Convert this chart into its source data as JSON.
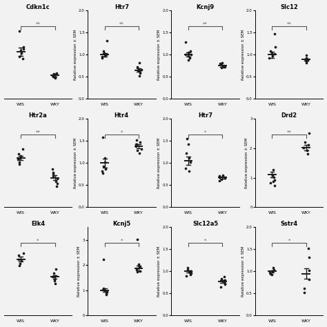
{
  "plots": [
    {
      "title": "Cdkn1c",
      "ylabel": "",
      "has_yaxis": false,
      "wis_points": [
        1.35,
        1.05,
        0.92,
        1.08,
        1.02,
        0.98,
        0.88
      ],
      "wky_points": [
        0.55,
        0.62,
        0.58,
        0.6,
        0.63,
        0.57,
        0.59
      ],
      "wis_mean": 1.0,
      "wis_sem": 0.07,
      "wky_mean": 0.6,
      "wky_sem": 0.025,
      "sig": "**",
      "ylim": [
        0.2,
        1.7
      ],
      "yticks": null,
      "row": 0,
      "col": 0
    },
    {
      "title": "Htr7",
      "ylabel": "Relative expression ± SEM",
      "has_yaxis": true,
      "wis_points": [
        1.32,
        1.08,
        1.01,
        0.96,
        0.93,
        1.0,
        0.97,
        1.03
      ],
      "wky_points": [
        0.72,
        0.82,
        0.65,
        0.58,
        0.68,
        0.63,
        0.52,
        0.66
      ],
      "wis_mean": 1.0,
      "wis_sem": 0.04,
      "wky_mean": 0.65,
      "wky_sem": 0.04,
      "sig": "**",
      "ylim": [
        0.0,
        2.0
      ],
      "yticks": [
        0.0,
        0.5,
        1.0,
        1.5,
        2.0
      ],
      "row": 0,
      "col": 1
    },
    {
      "title": "Kcnj9",
      "ylabel": "Relative expression ± SEM",
      "has_yaxis": true,
      "wis_points": [
        1.28,
        1.08,
        0.97,
        0.92,
        1.0,
        1.05,
        0.88,
        1.01
      ],
      "wky_points": [
        0.78,
        0.82,
        0.72,
        0.74,
        0.7,
        0.8,
        0.77,
        0.72
      ],
      "wis_mean": 1.0,
      "wis_sem": 0.045,
      "wky_mean": 0.75,
      "wky_sem": 0.025,
      "sig": "**",
      "ylim": [
        0.0,
        2.0
      ],
      "yticks": [
        0.0,
        0.5,
        1.0,
        1.5,
        2.0
      ],
      "row": 0,
      "col": 2
    },
    {
      "title": "Slc12",
      "ylabel": "Relative expression ± SEM",
      "has_yaxis": true,
      "wis_points": [
        1.48,
        1.18,
        1.02,
        0.97,
        1.08,
        0.92,
        1.03
      ],
      "wky_points": [
        0.88,
        0.98,
        0.93,
        0.85,
        0.82,
        0.9,
        0.87
      ],
      "wis_mean": 1.0,
      "wis_sem": 0.07,
      "wky_mean": 0.89,
      "wky_sem": 0.025,
      "sig": "**",
      "ylim": [
        0.0,
        2.0
      ],
      "yticks": [
        0.0,
        0.5,
        1.0,
        1.5,
        2.0
      ],
      "row": 0,
      "col": 3
    },
    {
      "title": "Htr2a",
      "ylabel": "",
      "has_yaxis": false,
      "wis_points": [
        1.18,
        1.08,
        0.97,
        1.0,
        0.92,
        1.05,
        0.87,
        1.0
      ],
      "wky_points": [
        0.78,
        0.68,
        0.58,
        0.63,
        0.52,
        0.48,
        0.42,
        0.7
      ],
      "wis_mean": 1.0,
      "wis_sem": 0.04,
      "wky_mean": 0.6,
      "wky_sem": 0.05,
      "sig": "**",
      "ylim": [
        0.0,
        1.8
      ],
      "yticks": null,
      "row": 1,
      "col": 0
    },
    {
      "title": "Htr4",
      "ylabel": "Relative expression ± SEM",
      "has_yaxis": true,
      "wis_points": [
        1.58,
        1.12,
        1.02,
        0.82,
        0.92,
        0.77,
        0.87
      ],
      "wky_points": [
        1.52,
        1.42,
        1.32,
        1.22,
        1.38,
        1.48,
        1.42,
        1.28
      ],
      "wis_mean": 1.0,
      "wis_sem": 0.1,
      "wky_mean": 1.38,
      "wky_sem": 0.04,
      "sig": "*",
      "ylim": [
        0.0,
        2.0
      ],
      "yticks": [
        0.0,
        0.5,
        1.0,
        1.5,
        2.0
      ],
      "row": 1,
      "col": 1
    },
    {
      "title": "Htr7",
      "ylabel": "Relative expression ± SEM",
      "has_yaxis": true,
      "wis_points": [
        1.55,
        1.42,
        1.22,
        0.88,
        1.02,
        1.12,
        0.82
      ],
      "wky_points": [
        0.73,
        0.68,
        0.63,
        0.66,
        0.7,
        0.68,
        0.66,
        0.6
      ],
      "wis_mean": 1.05,
      "wis_sem": 0.1,
      "wky_mean": 0.67,
      "wky_sem": 0.02,
      "sig": "*",
      "ylim": [
        0.0,
        2.0
      ],
      "yticks": [
        0.0,
        0.5,
        1.0,
        1.5,
        2.0
      ],
      "row": 1,
      "col": 2
    },
    {
      "title": "Drd2",
      "ylabel": "Relative expression ± SEM",
      "has_yaxis": true,
      "wis_points": [
        1.28,
        1.08,
        0.92,
        0.82,
        0.72,
        1.02,
        0.87
      ],
      "wky_points": [
        2.52,
        2.22,
        2.02,
        1.92,
        2.12,
        1.82,
        2.02
      ],
      "wis_mean": 1.1,
      "wis_sem": 0.09,
      "wky_mean": 2.02,
      "wky_sem": 0.09,
      "sig": "**",
      "ylim": [
        0.0,
        3.0
      ],
      "yticks": [
        0,
        1,
        2,
        3
      ],
      "row": 1,
      "col": 3
    },
    {
      "title": "Elk4",
      "ylabel": "",
      "has_yaxis": false,
      "wis_points": [
        1.38,
        1.28,
        1.22,
        1.35,
        1.25,
        1.3
      ],
      "wky_points": [
        1.18,
        1.08,
        1.0,
        1.13,
        1.03,
        1.08,
        1.05
      ],
      "wis_mean": 1.3,
      "wis_sem": 0.03,
      "wky_mean": 1.08,
      "wky_sem": 0.025,
      "sig": "*",
      "ylim": [
        0.6,
        1.7
      ],
      "yticks": null,
      "row": 2,
      "col": 0
    },
    {
      "title": "Kcnj5",
      "ylabel": "Relative expression ± SEM",
      "has_yaxis": true,
      "wis_points": [
        1.08,
        0.98,
        0.88,
        0.83,
        0.93,
        1.03,
        2.22
      ],
      "wky_points": [
        2.02,
        1.92,
        1.82,
        1.87,
        1.97,
        1.72,
        1.77,
        3.02
      ],
      "wis_mean": 1.0,
      "wis_sem": 0.07,
      "wky_mean": 1.87,
      "wky_sem": 0.1,
      "sig": "*",
      "ylim": [
        0.0,
        3.5
      ],
      "yticks": [
        0,
        1,
        2,
        3
      ],
      "row": 2,
      "col": 1
    },
    {
      "title": "Slc12a5",
      "ylabel": "Relative expression ± SEM",
      "has_yaxis": true,
      "wis_points": [
        1.08,
        1.0,
        0.97,
        0.92,
        1.03,
        1.0,
        0.96,
        0.9
      ],
      "wky_points": [
        0.88,
        0.78,
        0.73,
        0.8,
        0.76,
        0.7,
        0.65,
        0.83
      ],
      "wis_mean": 1.0,
      "wis_sem": 0.025,
      "wky_mean": 0.77,
      "wky_sem": 0.025,
      "sig": "*",
      "ylim": [
        0.0,
        2.0
      ],
      "yticks": [
        0.0,
        0.5,
        1.0,
        1.5,
        2.0
      ],
      "row": 2,
      "col": 2
    },
    {
      "title": "Sstr4",
      "ylabel": "Relative expression ± SEM",
      "has_yaxis": true,
      "wis_points": [
        1.08,
        1.0,
        0.97,
        0.92,
        1.03,
        1.0,
        0.95
      ],
      "wky_points": [
        1.52,
        1.32,
        0.82,
        0.62,
        1.02,
        0.52
      ],
      "wis_mean": 1.0,
      "wis_sem": 0.025,
      "wky_mean": 0.95,
      "wky_sem": 0.12,
      "sig": "*",
      "ylim": [
        0.0,
        2.0
      ],
      "yticks": [
        0.0,
        0.5,
        1.0,
        1.5,
        2.0
      ],
      "row": 2,
      "col": 3
    }
  ],
  "bg_color": "#f2f2f2",
  "dot_color": "#1a1a1a",
  "dot_size": 7,
  "mean_line_color": "#1a1a1a",
  "sig_bracket_color": "#555555"
}
